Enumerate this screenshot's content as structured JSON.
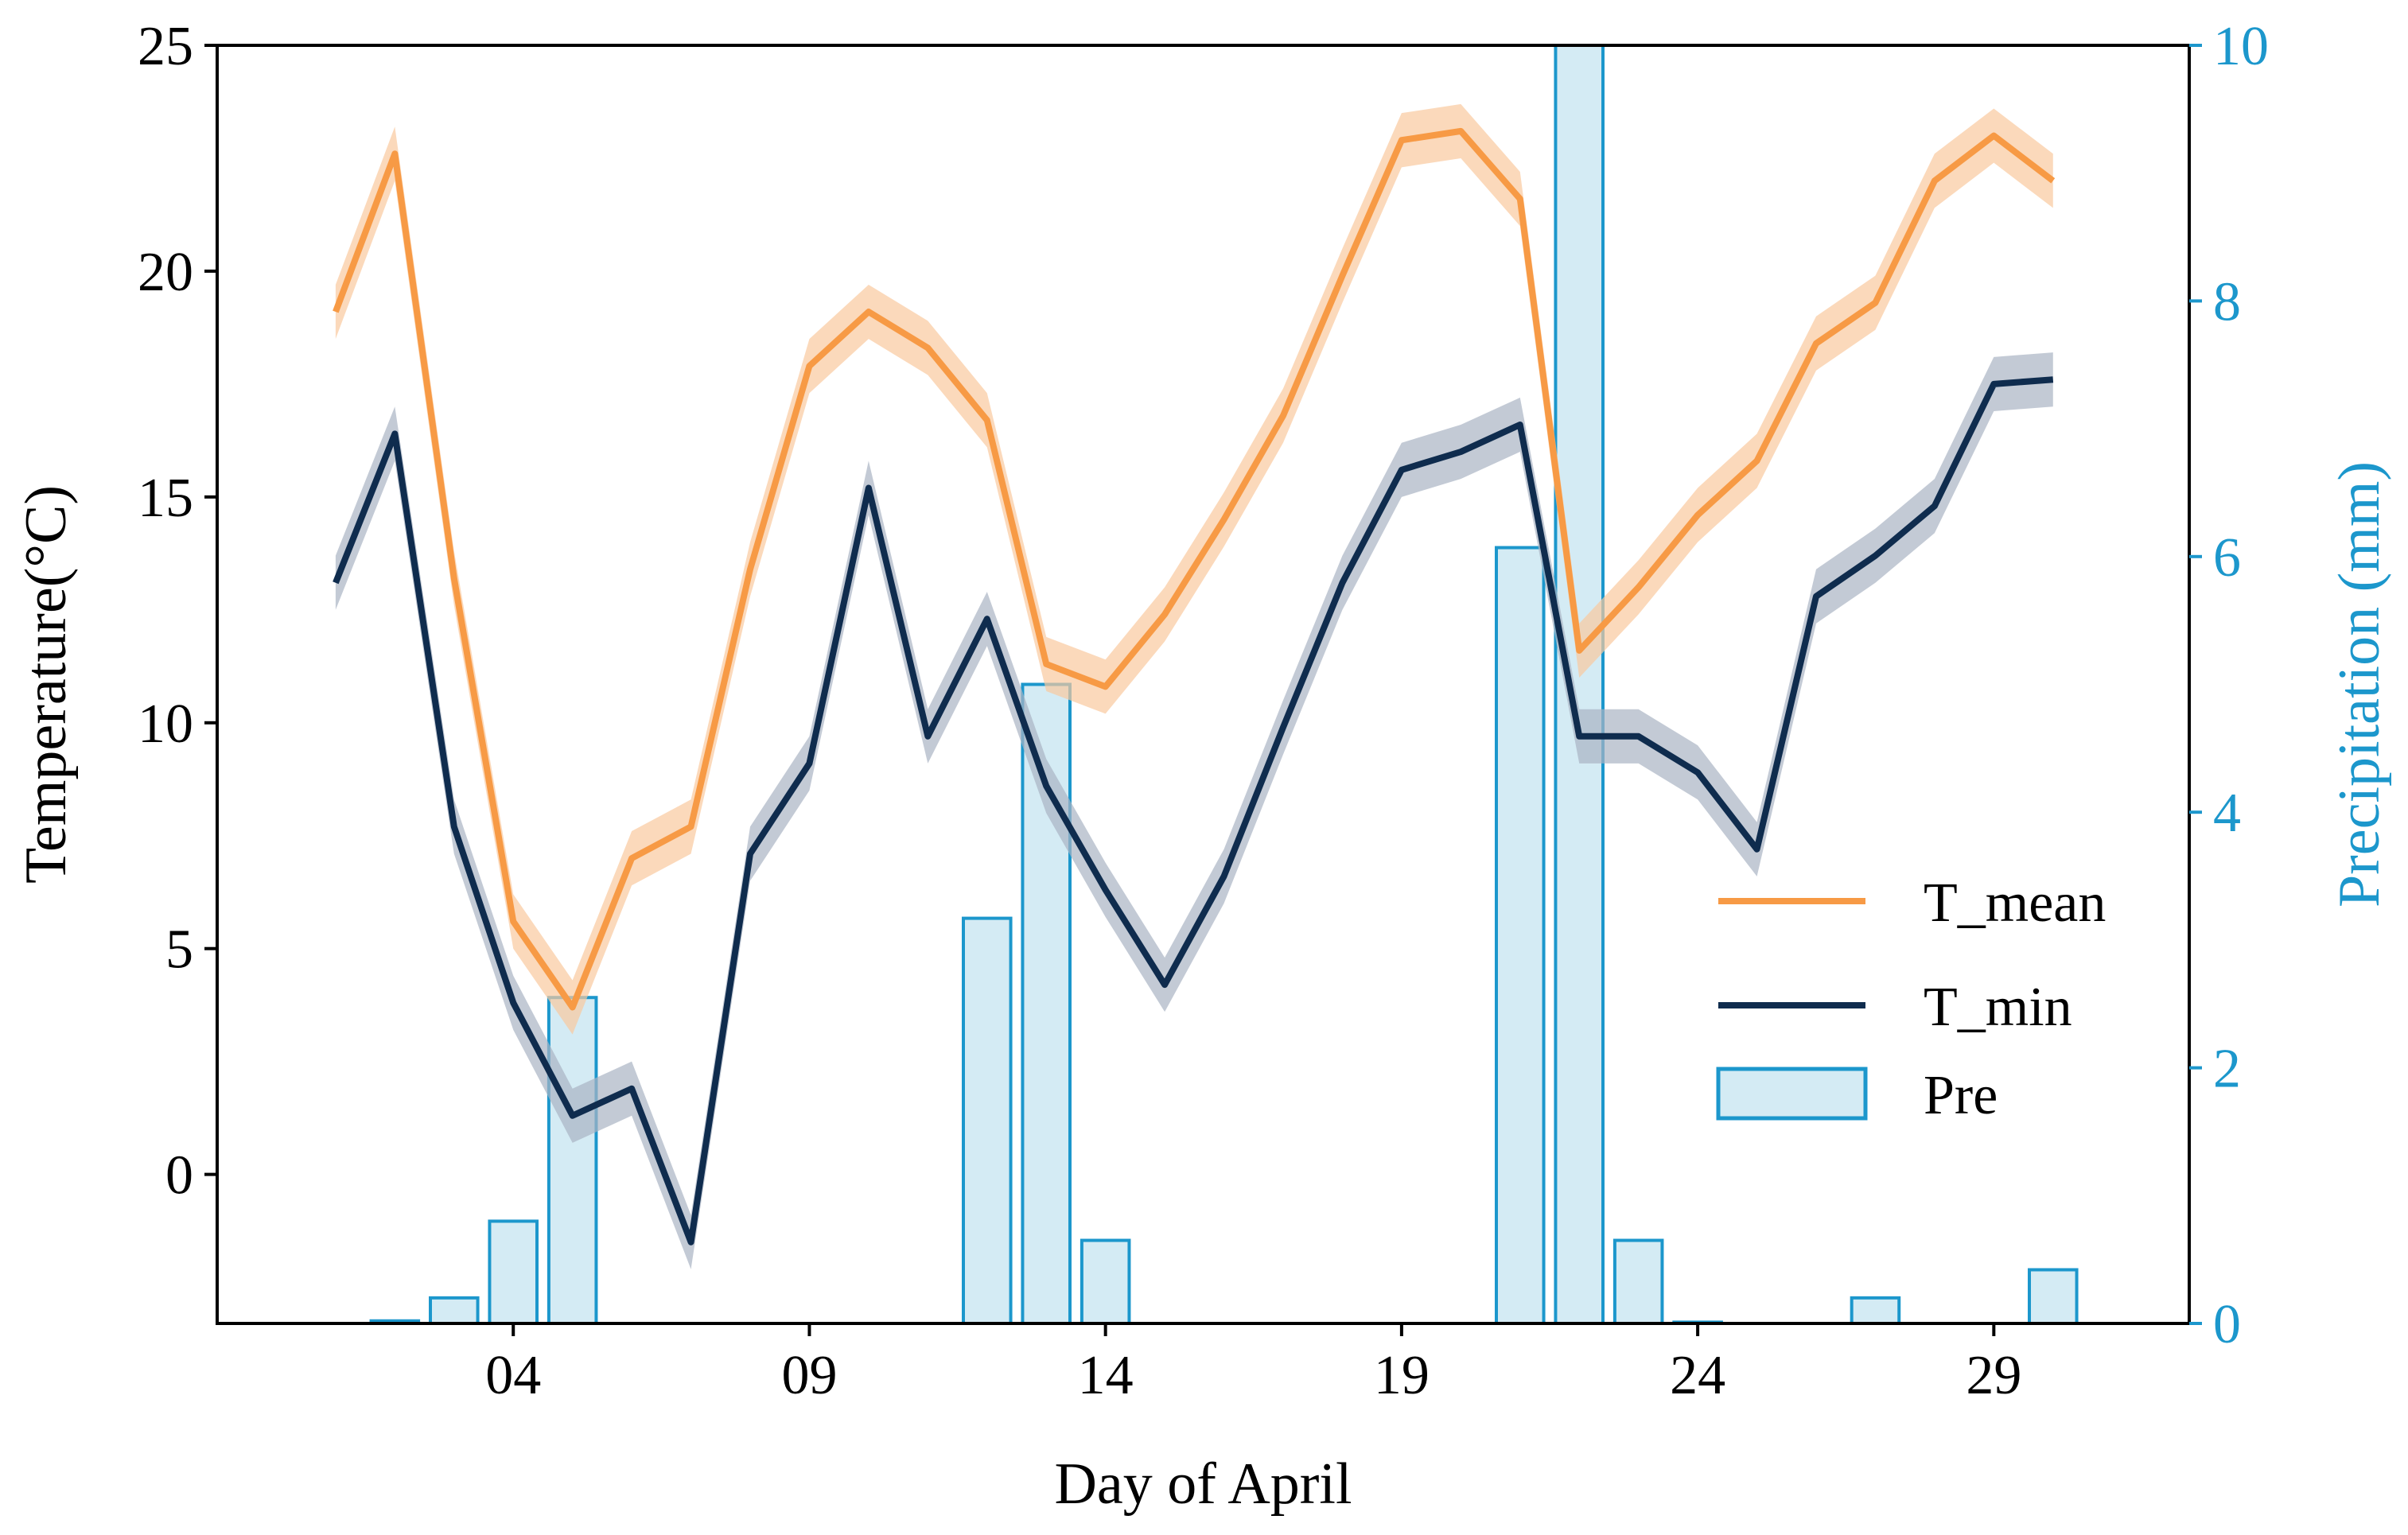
{
  "colors": {
    "t_mean": "#F79A45",
    "t_mean_band": "#F9C99E",
    "t_min": "#0F2C4E",
    "t_min_band": "#A9B3C3",
    "pre_edge": "#1C97CC",
    "pre_fill": "#D4EBF4",
    "axis": "#000000",
    "right_axis": "#1C97CC"
  },
  "chart_data": {
    "type": "line+bar",
    "title": "",
    "xlabel": "Day of April",
    "ylabel_left": "Temperature(°C)",
    "ylabel_right": "Precipitation (mm)",
    "xlim": [
      -1,
      32.3
    ],
    "ylim_left": [
      -3.3,
      25
    ],
    "ylim_right": [
      0,
      10
    ],
    "x_ticks": [
      4,
      9,
      14,
      19,
      24,
      29
    ],
    "x_tick_labels": [
      "04",
      "09",
      "14",
      "19",
      "24",
      "29"
    ],
    "y_left_ticks": [
      0,
      5,
      10,
      15,
      20,
      25
    ],
    "y_left_tick_labels": [
      "0",
      "5",
      "10",
      "15",
      "20",
      "25"
    ],
    "y_right_ticks": [
      0,
      2,
      4,
      6,
      8,
      10
    ],
    "y_right_tick_labels": [
      "0",
      "2",
      "4",
      "6",
      "8",
      "10"
    ],
    "legend": {
      "position": "center-right",
      "entries": [
        "T_mean",
        "T_min",
        "Pre"
      ]
    },
    "series": [
      {
        "name": "T_mean",
        "kind": "line",
        "axis": "left",
        "x": [
          1,
          2,
          3,
          4,
          5,
          6,
          7,
          8,
          9,
          10,
          11,
          12,
          13,
          14,
          15,
          16,
          17,
          18,
          19,
          20,
          21,
          22,
          23,
          24,
          25,
          26,
          27,
          28,
          29,
          30
        ],
        "values": [
          19.1,
          22.6,
          13.2,
          5.6,
          3.7,
          7.0,
          7.7,
          13.4,
          17.9,
          19.1,
          18.3,
          16.7,
          11.3,
          10.8,
          12.4,
          14.5,
          16.8,
          19.9,
          22.9,
          23.1,
          21.6,
          11.6,
          13.0,
          14.6,
          15.8,
          18.4,
          19.3,
          22.0,
          23.0,
          22.0
        ],
        "band": 0.6
      },
      {
        "name": "T_min",
        "kind": "line",
        "axis": "left",
        "x": [
          1,
          2,
          3,
          4,
          5,
          6,
          7,
          8,
          9,
          10,
          11,
          12,
          13,
          14,
          15,
          16,
          17,
          18,
          19,
          20,
          21,
          22,
          23,
          24,
          25,
          26,
          27,
          28,
          29,
          30
        ],
        "values": [
          13.1,
          16.4,
          7.7,
          3.8,
          1.3,
          1.9,
          -1.5,
          7.1,
          9.1,
          15.2,
          9.7,
          12.3,
          8.6,
          6.3,
          4.2,
          6.6,
          9.9,
          13.1,
          15.6,
          16.0,
          16.6,
          9.7,
          9.7,
          8.9,
          7.2,
          12.8,
          13.7,
          14.8,
          17.5,
          17.6
        ],
        "band": 0.6
      },
      {
        "name": "Pre",
        "kind": "bar",
        "axis": "right",
        "x": [
          1,
          2,
          3,
          4,
          5,
          6,
          7,
          8,
          9,
          10,
          11,
          12,
          13,
          14,
          15,
          16,
          17,
          18,
          19,
          20,
          21,
          22,
          23,
          24,
          25,
          26,
          27,
          28,
          29,
          30
        ],
        "values": [
          0,
          0.02,
          0.2,
          0.8,
          2.55,
          0,
          0,
          0,
          0,
          0,
          0,
          3.17,
          5.0,
          0.65,
          0,
          0,
          0,
          0,
          0,
          0,
          6.07,
          10.0,
          0.65,
          0.01,
          0,
          0,
          0.2,
          0,
          0,
          0.42
        ],
        "bar_width": 0.8
      }
    ]
  }
}
